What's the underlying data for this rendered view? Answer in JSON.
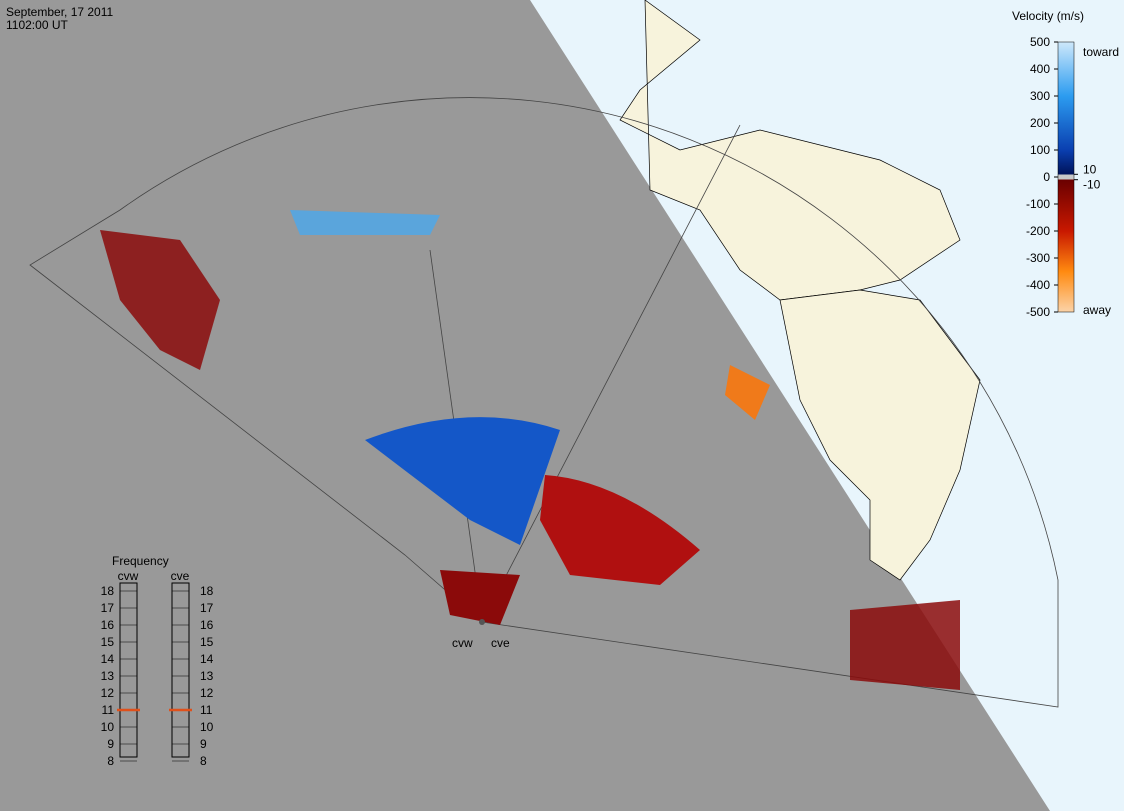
{
  "header": {
    "date": "September, 17 2011",
    "time": "1102:00 UT"
  },
  "velocity_scale": {
    "title": "Velocity (m/s)",
    "left_ticks": [
      500,
      400,
      300,
      200,
      100,
      0,
      -100,
      -200,
      -300,
      -400,
      -500
    ],
    "right_ticks": [
      10,
      -10
    ],
    "toward": "toward",
    "away": "away"
  },
  "frequency": {
    "title": "Frequency",
    "ticks": [
      18,
      17,
      16,
      15,
      14,
      13,
      12,
      11,
      10,
      9,
      8
    ],
    "radars": [
      {
        "name": "cvw",
        "value": 11
      },
      {
        "name": "cve",
        "value": 11
      }
    ]
  },
  "sites": [
    "cvw",
    "cve"
  ]
}
